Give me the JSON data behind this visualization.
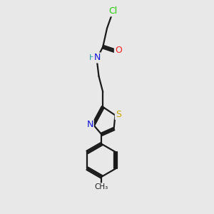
{
  "background_color": "#e8e8e8",
  "bond_color": "#1a1a1a",
  "atom_colors": {
    "Cl": "#22cc00",
    "O": "#ff2020",
    "N": "#1010dd",
    "H_N": "#20a0a0",
    "S": "#c8a800",
    "C": "#1a1a1a"
  },
  "figsize": [
    3.0,
    3.0
  ],
  "dpi": 100,
  "xlim": [
    0.0,
    1.0
  ],
  "ylim": [
    -0.15,
    2.95
  ]
}
